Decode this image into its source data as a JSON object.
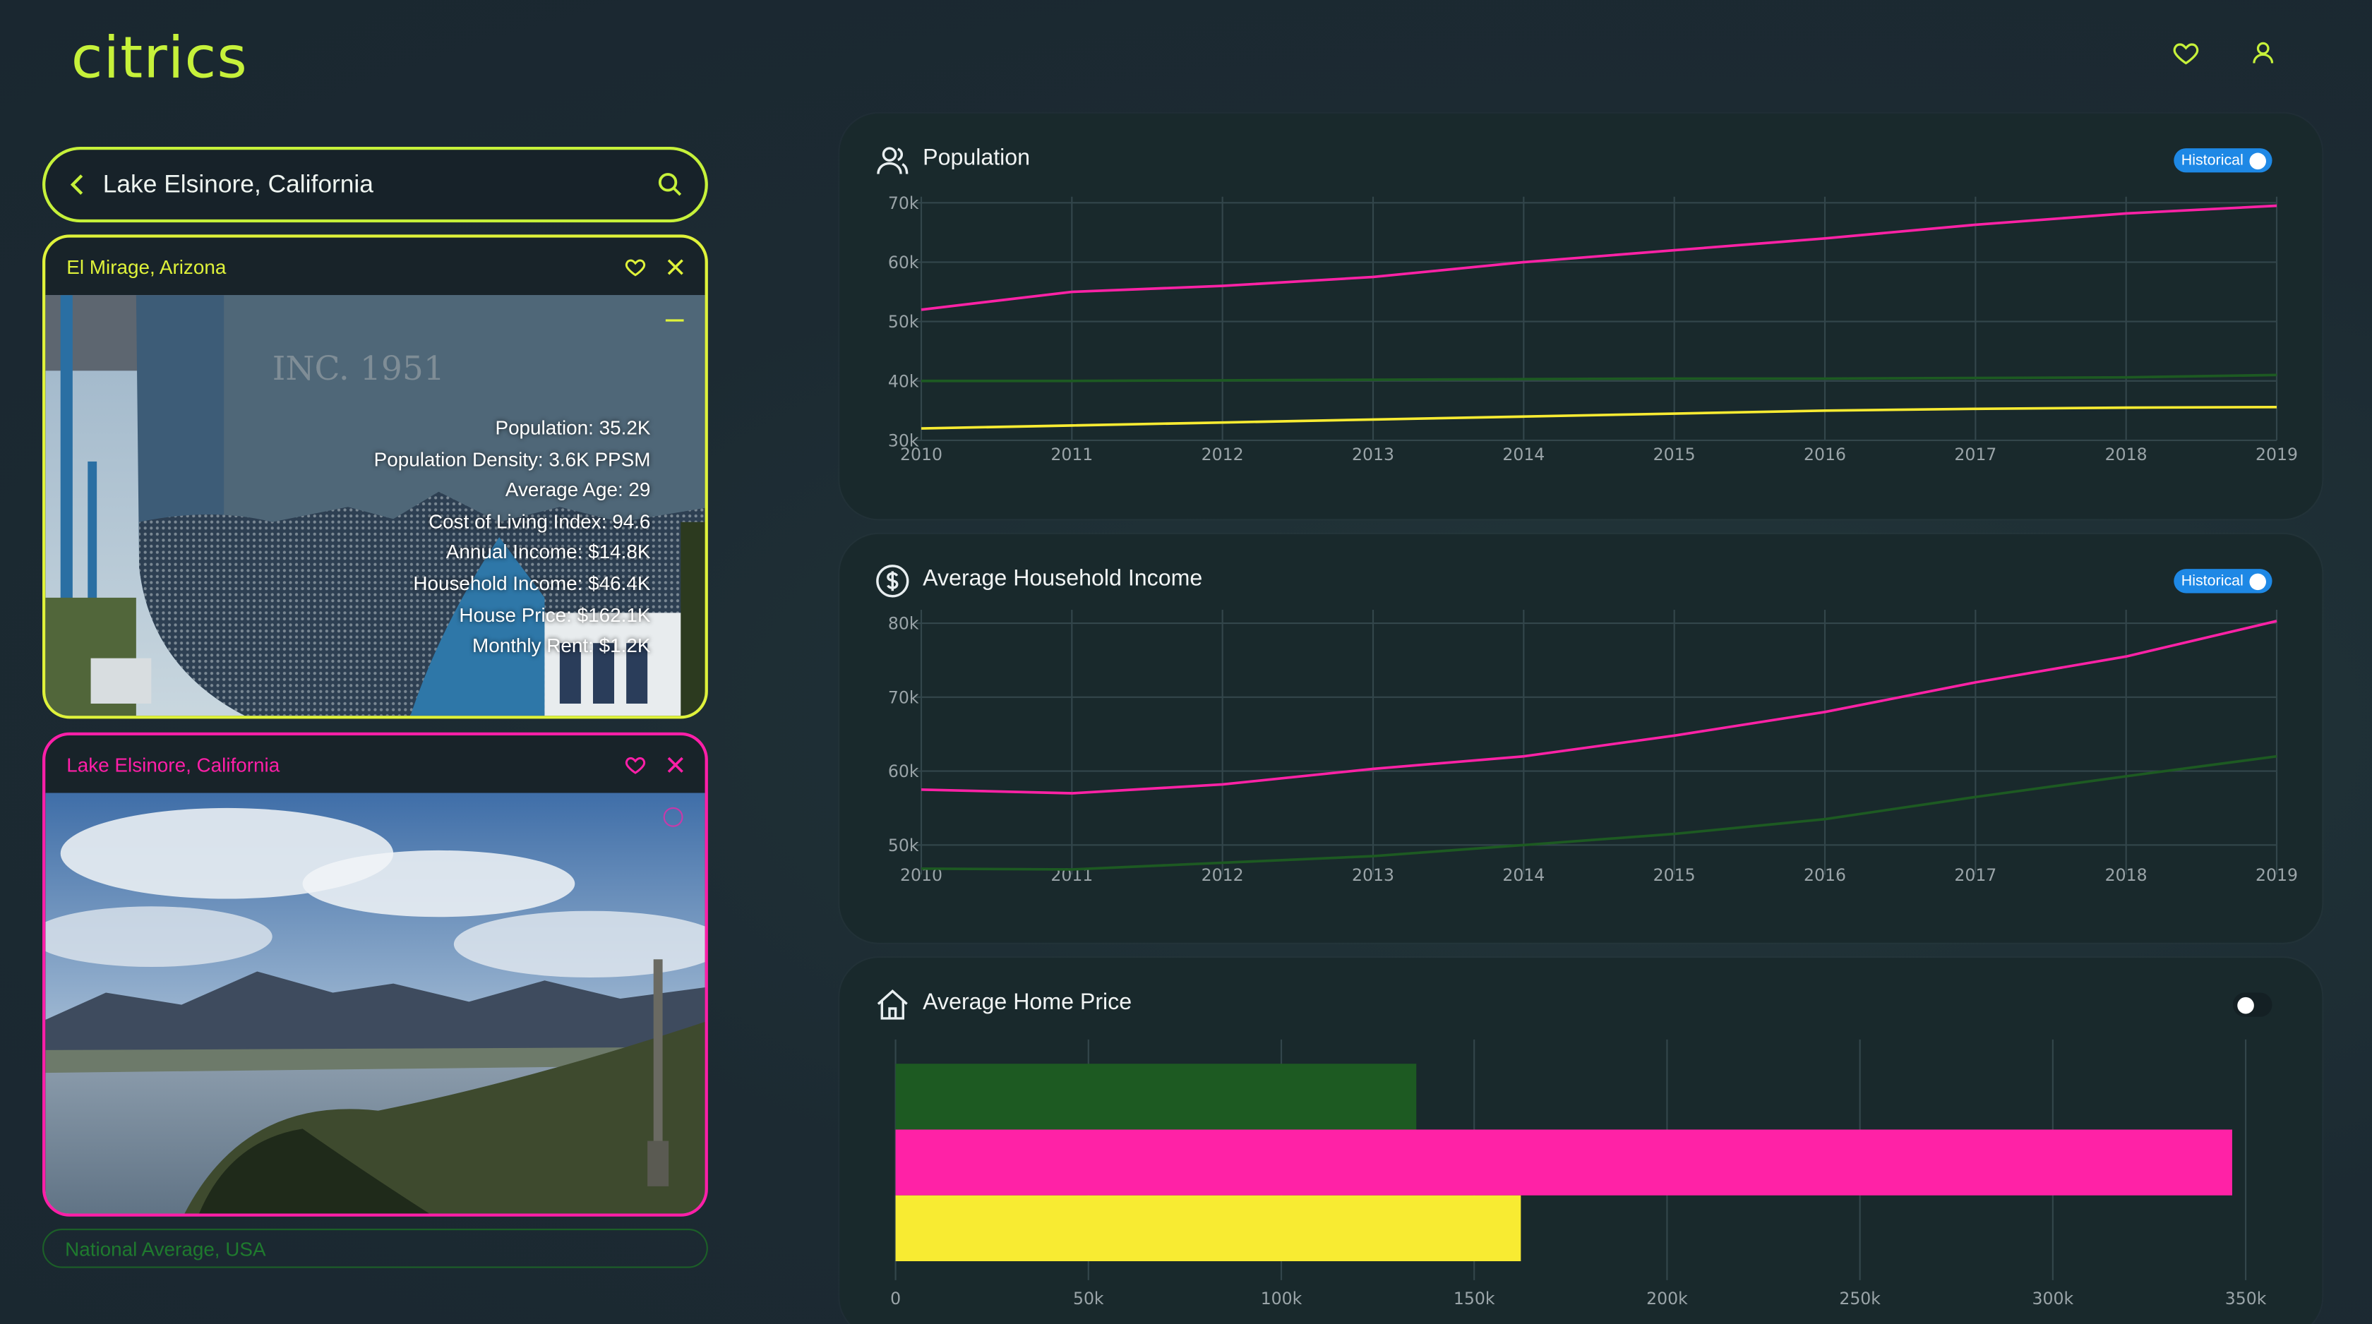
{
  "app": {
    "logo": "citrics"
  },
  "search": {
    "value": "Lake Elsinore, California"
  },
  "cards": [
    {
      "name": "El Mirage, Arizona",
      "color": "#dff23a",
      "photo_text": "INC. 1951",
      "stats": [
        "Population: 35.2K",
        "Population Density: 3.6K PPSM",
        "Average Age: 29",
        "Cost of Living Index: 94.6",
        "Annual Income: $14.8K",
        "Household Income: $46.4K",
        "House Price: $162.1K",
        "Monthly Rent: $1.2K"
      ]
    },
    {
      "name": "Lake Elsinore, California",
      "color": "#ff1fa8"
    }
  ],
  "national": {
    "label": "National Average, USA",
    "color": "#1f7a2e"
  },
  "colors": {
    "pink": "#ff22a6",
    "yellow": "#f8eb32",
    "green": "#1d5a22"
  },
  "panels": {
    "population": {
      "title": "Population",
      "toggle_label": "Historical"
    },
    "income": {
      "title": "Average Household Income",
      "toggle_label": "Historical"
    },
    "home": {
      "title": "Average Home Price"
    }
  },
  "chart_data": [
    {
      "type": "line",
      "title": "Population",
      "x": [
        2010,
        2011,
        2012,
        2013,
        2014,
        2015,
        2016,
        2017,
        2018,
        2019
      ],
      "ylim": [
        30000,
        70000
      ],
      "yticks": [
        "30k",
        "40k",
        "50k",
        "60k",
        "70k"
      ],
      "series": [
        {
          "color": "#ff22a6",
          "values": [
            52000,
            55000,
            56000,
            57500,
            60000,
            62000,
            64000,
            66300,
            68200,
            69500
          ]
        },
        {
          "color": "#1d5a22",
          "values": [
            40000,
            40000,
            40100,
            40200,
            40300,
            40400,
            40400,
            40500,
            40600,
            41000
          ]
        },
        {
          "color": "#f8eb32",
          "values": [
            32000,
            32500,
            33000,
            33500,
            34000,
            34500,
            35000,
            35300,
            35500,
            35600
          ]
        }
      ]
    },
    {
      "type": "line",
      "title": "Average Household Income",
      "x": [
        2010,
        2011,
        2012,
        2013,
        2014,
        2015,
        2016,
        2017,
        2018,
        2019
      ],
      "ylim": [
        46000,
        81000
      ],
      "yticks": [
        "50k",
        "60k",
        "70k",
        "80k"
      ],
      "series": [
        {
          "color": "#ff22a6",
          "values": [
            57500,
            57000,
            58200,
            60300,
            62000,
            64800,
            68000,
            72000,
            75500,
            80300
          ]
        },
        {
          "color": "#1d5a22",
          "values": [
            46800,
            46700,
            47600,
            48500,
            50000,
            51500,
            53500,
            56500,
            59300,
            62000
          ]
        }
      ]
    },
    {
      "type": "bar",
      "title": "Average Home Price",
      "orientation": "horizontal",
      "xlim": [
        0,
        360000
      ],
      "xticks": [
        "0",
        "50k",
        "100k",
        "150k",
        "200k",
        "250k",
        "300k",
        "350k"
      ],
      "series": [
        {
          "color": "#1d5a22",
          "value": 135000
        },
        {
          "color": "#ff22a6",
          "value": 346500
        },
        {
          "color": "#f8eb32",
          "value": 162100
        }
      ]
    }
  ]
}
